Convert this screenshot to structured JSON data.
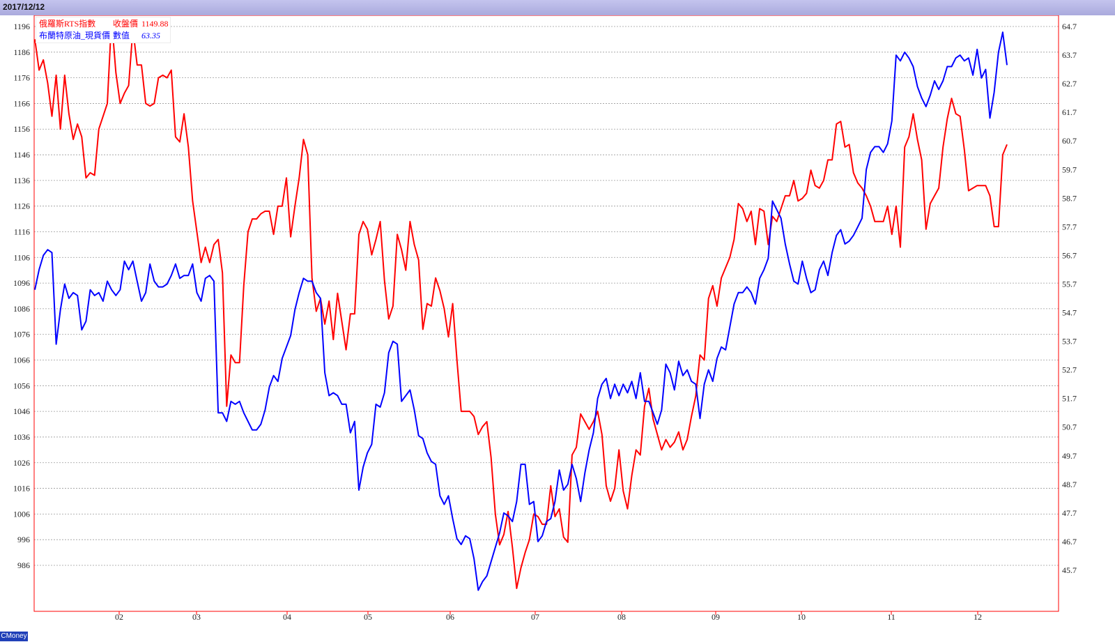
{
  "header": {
    "date": "2017/12/12"
  },
  "legend": {
    "s1": {
      "name": "俄羅斯RTS指數",
      "value_label": "收盤價",
      "value": "1149.88",
      "color": "#ff0000"
    },
    "s2": {
      "name": "布蘭特原油_現貨價",
      "value_label": "數值",
      "value": "63.35",
      "color": "#0000ff"
    }
  },
  "footer": {
    "brand": "CMoney"
  },
  "chart_data": {
    "type": "line",
    "grid": true,
    "x_labels": [
      "02",
      "03",
      "04",
      "05",
      "06",
      "07",
      "08",
      "09",
      "10",
      "11",
      "12"
    ],
    "y_left": {
      "ticks": [
        1196,
        1186,
        1176,
        1166,
        1156,
        1146,
        1136,
        1126,
        1116,
        1106,
        1096,
        1086,
        1076,
        1066,
        1056,
        1046,
        1036,
        1026,
        1016,
        1006,
        996,
        986
      ]
    },
    "y_right": {
      "ticks": [
        "64.7",
        "63.7",
        "62.7",
        "61.7",
        "60.7",
        "59.7",
        "58.7",
        "57.7",
        "56.7",
        "55.7",
        "54.7",
        "53.7",
        "52.7",
        "51.7",
        "50.7",
        "49.7",
        "48.7",
        "47.7",
        "46.7",
        "45.7"
      ]
    },
    "series": [
      {
        "name": "俄羅斯RTS指數",
        "axis": "left",
        "color": "#ff0000",
        "values": [
          1191,
          1179,
          1183,
          1174,
          1161,
          1177,
          1156,
          1177,
          1162,
          1152,
          1158,
          1153,
          1137,
          1139,
          1138,
          1156,
          1161,
          1166,
          1199,
          1178,
          1166,
          1170,
          1173,
          1195,
          1181,
          1181,
          1166,
          1165,
          1166,
          1176,
          1177,
          1176,
          1179,
          1153,
          1151,
          1162,
          1149,
          1128,
          1116,
          1104,
          1110,
          1104,
          1111,
          1113,
          1100,
          1048,
          1068,
          1065,
          1065,
          1095,
          1116,
          1121,
          1121,
          1123,
          1124,
          1124,
          1115,
          1126,
          1126,
          1137,
          1114,
          1126,
          1137,
          1152,
          1146,
          1098,
          1085,
          1090,
          1080,
          1089,
          1074,
          1092,
          1081,
          1070,
          1084,
          1084,
          1115,
          1120,
          1117,
          1107,
          1113,
          1120,
          1097,
          1082,
          1087,
          1115,
          1109,
          1101,
          1120,
          1111,
          1105,
          1078,
          1088,
          1087,
          1098,
          1093,
          1086,
          1075,
          1088,
          1066,
          1046,
          1046,
          1046,
          1044,
          1037,
          1040,
          1042,
          1028,
          1006,
          994,
          998,
          1007,
          993,
          977,
          985,
          991,
          996,
          1006,
          1005,
          1002,
          1002,
          1017,
          1005,
          1008,
          997,
          995,
          1029,
          1032,
          1045,
          1042,
          1039,
          1042,
          1046,
          1037,
          1017,
          1011,
          1016,
          1031,
          1015,
          1008,
          1021,
          1031,
          1029,
          1048,
          1055,
          1043,
          1037,
          1031,
          1035,
          1032,
          1034,
          1038,
          1031,
          1035,
          1044,
          1052,
          1068,
          1066,
          1090,
          1095,
          1087,
          1098,
          1102,
          1106,
          1113,
          1127,
          1125,
          1120,
          1124,
          1111,
          1125,
          1124,
          1111,
          1122,
          1120,
          1125,
          1130,
          1130,
          1136,
          1128,
          1129,
          1131,
          1140,
          1134,
          1133,
          1136,
          1144,
          1144,
          1158,
          1159,
          1149,
          1150,
          1139,
          1135,
          1133,
          1130,
          1126,
          1120,
          1120,
          1120,
          1126,
          1115,
          1126,
          1110,
          1149,
          1153,
          1162,
          1152,
          1144,
          1117,
          1127,
          1130,
          1133,
          1149,
          1160,
          1168,
          1162,
          1161,
          1148,
          1132,
          1133,
          1134,
          1134,
          1134,
          1130,
          1118,
          1118,
          1146,
          1150
        ]
      },
      {
        "name": "布蘭特原油_現貨價",
        "axis": "right",
        "color": "#0000ff",
        "values": [
          55.5,
          56.2,
          56.7,
          56.9,
          56.8,
          53.6,
          54.8,
          55.7,
          55.2,
          55.4,
          55.3,
          54.1,
          54.4,
          55.5,
          55.3,
          55.4,
          55.1,
          55.8,
          55.5,
          55.3,
          55.5,
          56.5,
          56.2,
          56.5,
          55.8,
          55.1,
          55.4,
          56.4,
          55.8,
          55.6,
          55.6,
          55.7,
          56.0,
          56.4,
          55.9,
          56.0,
          56.0,
          56.4,
          55.4,
          55.1,
          55.9,
          56.0,
          55.8,
          51.2,
          51.2,
          50.9,
          51.6,
          51.5,
          51.6,
          51.2,
          50.9,
          50.6,
          50.6,
          50.8,
          51.3,
          52.1,
          52.5,
          52.3,
          53.1,
          53.5,
          53.9,
          54.8,
          55.4,
          55.9,
          55.8,
          55.8,
          55.4,
          55.2,
          52.6,
          51.8,
          51.9,
          51.8,
          51.5,
          51.5,
          50.5,
          50.9,
          48.5,
          49.3,
          49.8,
          50.1,
          51.5,
          51.4,
          51.9,
          53.3,
          53.7,
          53.6,
          51.6,
          51.8,
          52.0,
          51.3,
          50.4,
          50.3,
          49.8,
          49.5,
          49.4,
          48.3,
          48.0,
          48.3,
          47.5,
          46.8,
          46.6,
          46.9,
          46.8,
          46.1,
          45.0,
          45.3,
          45.5,
          46.0,
          46.5,
          47.0,
          47.7,
          47.6,
          47.4,
          48.1,
          49.4,
          49.4,
          48.0,
          48.1,
          46.7,
          46.9,
          47.4,
          47.5,
          48.1,
          49.2,
          48.5,
          48.7,
          49.4,
          48.9,
          48.1,
          49.1,
          49.9,
          50.5,
          51.7,
          52.2,
          52.4,
          51.7,
          52.2,
          51.8,
          52.2,
          51.9,
          52.3,
          51.7,
          52.6,
          51.6,
          51.6,
          51.2,
          50.8,
          51.3,
          52.9,
          52.6,
          52.0,
          53.0,
          52.5,
          52.7,
          52.3,
          52.2,
          51.0,
          52.2,
          52.7,
          52.3,
          53.1,
          53.5,
          53.4,
          54.2,
          55.0,
          55.4,
          55.4,
          55.6,
          55.4,
          55.0,
          55.9,
          56.2,
          56.6,
          58.6,
          58.3,
          58.0,
          57.1,
          56.4,
          55.8,
          55.7,
          56.5,
          55.9,
          55.4,
          55.5,
          56.2,
          56.5,
          56.0,
          56.8,
          57.4,
          57.6,
          57.1,
          57.2,
          57.4,
          57.7,
          58.0,
          59.7,
          60.3,
          60.5,
          60.5,
          60.3,
          60.6,
          61.4,
          63.7,
          63.5,
          63.8,
          63.6,
          63.3,
          62.6,
          62.2,
          61.9,
          62.3,
          62.8,
          62.5,
          62.8,
          63.3,
          63.3,
          63.6,
          63.7,
          63.5,
          63.6,
          63.0,
          63.9,
          62.9,
          63.2,
          61.5,
          62.4,
          63.8,
          64.5,
          63.35
        ]
      }
    ]
  }
}
